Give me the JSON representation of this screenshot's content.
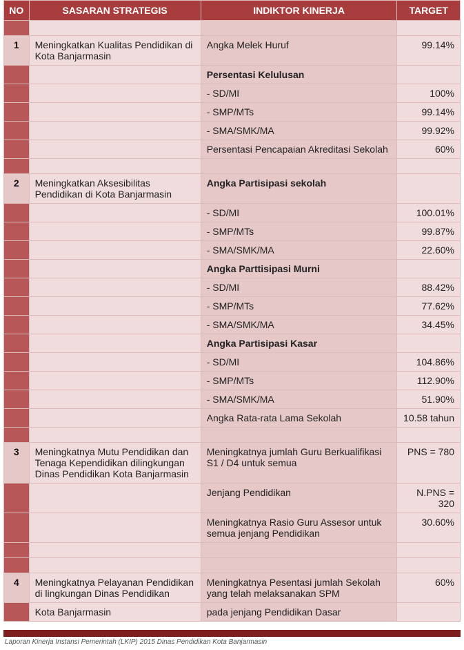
{
  "header": {
    "no": "NO",
    "sasaran": "SASARAN STRATEGIS",
    "indikator": "INDIKTOR KINERJA",
    "target": "TARGET"
  },
  "sections": {
    "s1": {
      "no": "1",
      "sasaran": "Meningkatkan Kualitas Pendidikan di Kota Banjarmasin",
      "r0": {
        "ind": "Angka Melek Huruf",
        "tgt": "99.14%"
      },
      "r1h": {
        "ind": "Persentasi Kelulusan"
      },
      "r2": {
        "ind": "- SD/MI",
        "tgt": "100%"
      },
      "r3": {
        "ind": "- SMP/MTs",
        "tgt": "99.14%"
      },
      "r4": {
        "ind": "- SMA/SMK/MA",
        "tgt": "99.92%"
      },
      "r5": {
        "ind": "Persentasi Pencapaian Akreditasi Sekolah",
        "tgt": "60%"
      }
    },
    "s2": {
      "no": "2",
      "sasaran": "Meningkatkan Aksesibilitas Pendidikan di Kota Banjarmasin",
      "r0h": {
        "ind": "Angka Partisipasi sekolah"
      },
      "r1": {
        "ind": "- SD/MI",
        "tgt": "100.01%"
      },
      "r2": {
        "ind": "- SMP/MTs",
        "tgt": "99.87%"
      },
      "r3": {
        "ind": "- SMA/SMK/MA",
        "tgt": "22.60%"
      },
      "r4h": {
        "ind": "Angka Parttisipasi Murni"
      },
      "r5": {
        "ind": "- SD/MI",
        "tgt": "88.42%"
      },
      "r6": {
        "ind": "- SMP/MTs",
        "tgt": "77.62%"
      },
      "r7": {
        "ind": "- SMA/SMK/MA",
        "tgt": "34.45%"
      },
      "r8h": {
        "ind": "Angka Partisipasi Kasar"
      },
      "r9": {
        "ind": "- SD/MI",
        "tgt": "104.86%"
      },
      "r10": {
        "ind": "- SMP/MTs",
        "tgt": "112.90%"
      },
      "r11": {
        "ind": "- SMA/SMK/MA",
        "tgt": "51.90%"
      },
      "r12": {
        "ind": "Angka Rata-rata Lama Sekolah",
        "tgt": "10.58 tahun"
      }
    },
    "s3": {
      "no": "3",
      "sasaran": "Meningkatnya Mutu Pendidikan dan Tenaga Kependidikan dilingkungan Dinas Pendidikan Kota Banjarmasin",
      "r0": {
        "ind": "Meningkatnya jumlah Guru Berkualifikasi S1 / D4 untuk semua",
        "tgt": "PNS = 780"
      },
      "r1": {
        "ind": "Jenjang Pendidikan",
        "tgt": "N.PNS = 320"
      },
      "r2": {
        "ind": "Meningkatnya Rasio Guru Assesor untuk semua jenjang Pendidikan",
        "tgt": "30.60%"
      }
    },
    "s4": {
      "no": "4",
      "sasaran": "Meningkatnya Pelayanan Pendidikan di lingkungan Dinas Pendidikan",
      "sasaran2": "Kota Banjarmasin",
      "r0": {
        "ind": "Meningkatnya Pesentasi  jumlah Sekolah yang telah melaksanakan SPM",
        "tgt": "60%"
      },
      "r1": {
        "ind": "pada jenjang Pendidikan Dasar"
      }
    }
  },
  "footer": "Laporan Kinerja Instansi Pemerintah (LKIP) 2015 Dinas Pendidikan Kota Banjarmasin"
}
